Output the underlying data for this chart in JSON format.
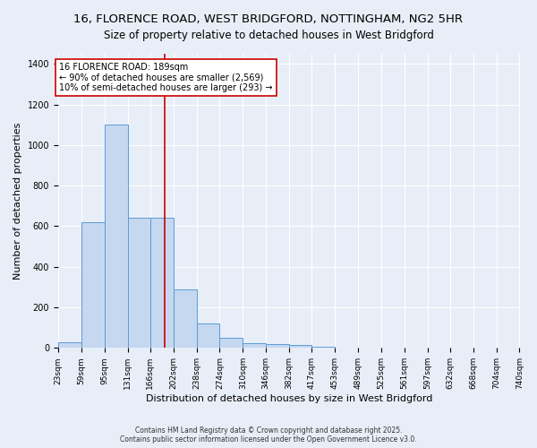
{
  "title_line1": "16, FLORENCE ROAD, WEST BRIDGFORD, NOTTINGHAM, NG2 5HR",
  "title_line2": "Size of property relative to detached houses in West Bridgford",
  "xlabel": "Distribution of detached houses by size in West Bridgford",
  "ylabel": "Number of detached properties",
  "bin_edges": [
    23,
    59,
    95,
    131,
    166,
    202,
    238,
    274,
    310,
    346,
    382,
    417,
    453,
    489,
    525,
    561,
    597,
    632,
    668,
    704,
    740
  ],
  "bar_heights": [
    30,
    620,
    1100,
    640,
    640,
    290,
    120,
    50,
    25,
    20,
    15,
    5,
    2,
    1,
    0,
    0,
    0,
    0,
    0,
    0
  ],
  "bar_color": "#c5d8f0",
  "bar_edgecolor": "#5b9bd5",
  "vline_x": 189,
  "vline_color": "#cc0000",
  "annotation_text": "16 FLORENCE ROAD: 189sqm\n← 90% of detached houses are smaller (2,569)\n10% of semi-detached houses are larger (293) →",
  "annotation_box_color": "#ffffff",
  "annotation_box_edgecolor": "#cc0000",
  "ylim": [
    0,
    1450
  ],
  "background_color": "#e8eef7",
  "grid_color": "#ffffff",
  "footer_line1": "Contains HM Land Registry data © Crown copyright and database right 2025.",
  "footer_line2": "Contains public sector information licensed under the Open Government Licence v3.0.",
  "title_fontsize": 9.5,
  "subtitle_fontsize": 8.5,
  "tick_fontsize": 6.5,
  "ylabel_fontsize": 8,
  "xlabel_fontsize": 8,
  "annotation_fontsize": 7,
  "footer_fontsize": 5.5
}
